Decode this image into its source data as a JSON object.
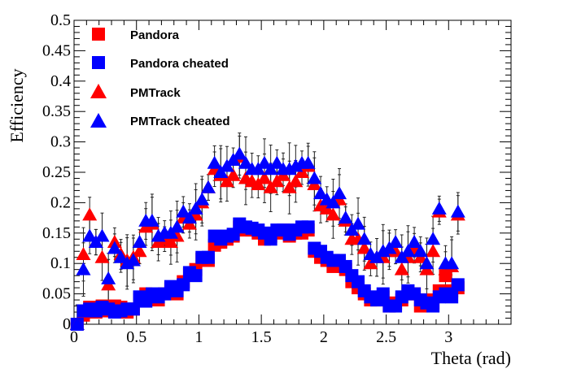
{
  "chart_data": {
    "type": "scatter",
    "xlabel": "Theta (rad)",
    "ylabel": "Efficiency",
    "xlim": [
      0,
      3.5
    ],
    "ylim": [
      0,
      0.5
    ],
    "xticks": [
      0,
      0.5,
      1,
      1.5,
      2,
      2.5,
      3
    ],
    "yticks": [
      0,
      0.05,
      0.1,
      0.15,
      0.2,
      0.25,
      0.3,
      0.35,
      0.4,
      0.45,
      0.5
    ],
    "legend_position": "top-left",
    "series": [
      {
        "name": "Pandora",
        "color": "#ff0000",
        "marker": "square",
        "x": [
          0.025,
          0.075,
          0.125,
          0.175,
          0.225,
          0.275,
          0.325,
          0.375,
          0.425,
          0.475,
          0.525,
          0.575,
          0.625,
          0.675,
          0.725,
          0.775,
          0.825,
          0.875,
          0.925,
          0.975,
          1.025,
          1.075,
          1.125,
          1.175,
          1.225,
          1.275,
          1.325,
          1.375,
          1.425,
          1.475,
          1.525,
          1.575,
          1.625,
          1.675,
          1.725,
          1.775,
          1.825,
          1.875,
          1.925,
          1.975,
          2.025,
          2.075,
          2.125,
          2.175,
          2.225,
          2.275,
          2.325,
          2.375,
          2.425,
          2.475,
          2.525,
          2.575,
          2.625,
          2.675,
          2.725,
          2.775,
          2.825,
          2.875,
          2.925,
          2.975,
          3.025,
          3.075
        ],
        "y": [
          0.0,
          0.015,
          0.028,
          0.02,
          0.03,
          0.022,
          0.03,
          0.028,
          0.02,
          0.025,
          0.04,
          0.05,
          0.045,
          0.04,
          0.05,
          0.058,
          0.05,
          0.07,
          0.082,
          0.09,
          0.107,
          0.105,
          0.13,
          0.135,
          0.14,
          0.145,
          0.16,
          0.155,
          0.155,
          0.15,
          0.14,
          0.145,
          0.15,
          0.155,
          0.145,
          0.15,
          0.15,
          0.155,
          0.12,
          0.11,
          0.105,
          0.095,
          0.1,
          0.09,
          0.07,
          0.06,
          0.05,
          0.04,
          0.04,
          0.045,
          0.03,
          0.035,
          0.04,
          0.05,
          0.05,
          0.03,
          0.04,
          0.035,
          0.055,
          0.08,
          0.055,
          0.06
        ]
      },
      {
        "name": "Pandora cheated",
        "color": "#0000ff",
        "marker": "square",
        "x": [
          0.025,
          0.075,
          0.125,
          0.175,
          0.225,
          0.275,
          0.325,
          0.375,
          0.425,
          0.475,
          0.525,
          0.575,
          0.625,
          0.675,
          0.725,
          0.775,
          0.825,
          0.875,
          0.925,
          0.975,
          1.025,
          1.075,
          1.125,
          1.175,
          1.225,
          1.275,
          1.325,
          1.375,
          1.425,
          1.475,
          1.525,
          1.575,
          1.625,
          1.675,
          1.725,
          1.775,
          1.825,
          1.875,
          1.925,
          1.975,
          2.025,
          2.075,
          2.125,
          2.175,
          2.225,
          2.275,
          2.325,
          2.375,
          2.425,
          2.475,
          2.525,
          2.575,
          2.625,
          2.675,
          2.725,
          2.775,
          2.825,
          2.875,
          2.925,
          2.975,
          3.025,
          3.075
        ],
        "y": [
          0.0,
          0.022,
          0.025,
          0.022,
          0.028,
          0.025,
          0.02,
          0.022,
          0.025,
          0.025,
          0.045,
          0.038,
          0.05,
          0.045,
          0.05,
          0.062,
          0.055,
          0.065,
          0.085,
          0.08,
          0.11,
          0.11,
          0.145,
          0.14,
          0.145,
          0.148,
          0.165,
          0.16,
          0.158,
          0.155,
          0.15,
          0.14,
          0.155,
          0.155,
          0.148,
          0.155,
          0.16,
          0.16,
          0.125,
          0.12,
          0.11,
          0.105,
          0.105,
          0.095,
          0.08,
          0.07,
          0.055,
          0.045,
          0.04,
          0.05,
          0.03,
          0.03,
          0.045,
          0.055,
          0.05,
          0.04,
          0.035,
          0.03,
          0.045,
          0.05,
          0.045,
          0.065
        ]
      },
      {
        "name": "PMTrack",
        "color": "#ff0000",
        "marker": "triangle",
        "x": [
          0.025,
          0.075,
          0.125,
          0.175,
          0.225,
          0.275,
          0.325,
          0.375,
          0.425,
          0.475,
          0.525,
          0.575,
          0.625,
          0.675,
          0.725,
          0.775,
          0.825,
          0.875,
          0.925,
          0.975,
          1.025,
          1.075,
          1.125,
          1.175,
          1.225,
          1.275,
          1.325,
          1.375,
          1.425,
          1.475,
          1.525,
          1.575,
          1.625,
          1.675,
          1.725,
          1.775,
          1.825,
          1.875,
          1.925,
          1.975,
          2.025,
          2.075,
          2.125,
          2.175,
          2.225,
          2.275,
          2.325,
          2.375,
          2.425,
          2.475,
          2.525,
          2.575,
          2.625,
          2.675,
          2.725,
          2.775,
          2.825,
          2.875,
          2.925,
          2.975,
          3.025,
          3.075
        ],
        "y": [
          0.0,
          0.115,
          0.18,
          0.135,
          0.11,
          0.065,
          0.135,
          0.115,
          0.105,
          0.11,
          0.12,
          0.16,
          0.165,
          0.135,
          0.14,
          0.135,
          0.145,
          0.175,
          0.165,
          0.18,
          0.2,
          0.225,
          0.255,
          0.245,
          0.235,
          0.245,
          0.275,
          0.24,
          0.235,
          0.23,
          0.24,
          0.225,
          0.235,
          0.245,
          0.225,
          0.235,
          0.25,
          0.26,
          0.23,
          0.195,
          0.19,
          0.18,
          0.205,
          0.17,
          0.14,
          0.14,
          0.125,
          0.1,
          0.11,
          0.11,
          0.12,
          0.12,
          0.09,
          0.11,
          0.125,
          0.11,
          0.09,
          0.12,
          0.185,
          0.09,
          0.095,
          0.18
        ]
      },
      {
        "name": "PMTrack cheated",
        "color": "#0000ff",
        "marker": "triangle",
        "x": [
          0.025,
          0.075,
          0.125,
          0.175,
          0.225,
          0.275,
          0.325,
          0.375,
          0.425,
          0.475,
          0.525,
          0.575,
          0.625,
          0.675,
          0.725,
          0.775,
          0.825,
          0.875,
          0.925,
          0.975,
          1.025,
          1.075,
          1.125,
          1.175,
          1.225,
          1.275,
          1.325,
          1.375,
          1.425,
          1.475,
          1.525,
          1.575,
          1.625,
          1.675,
          1.725,
          1.775,
          1.825,
          1.875,
          1.925,
          1.975,
          2.025,
          2.075,
          2.125,
          2.175,
          2.225,
          2.275,
          2.325,
          2.375,
          2.425,
          2.475,
          2.525,
          2.575,
          2.625,
          2.675,
          2.725,
          2.775,
          2.825,
          2.875,
          2.925,
          2.975,
          3.025,
          3.075
        ],
        "y": [
          0.0,
          0.09,
          0.145,
          0.135,
          0.145,
          0.075,
          0.125,
          0.11,
          0.1,
          0.105,
          0.135,
          0.17,
          0.17,
          0.145,
          0.15,
          0.15,
          0.16,
          0.185,
          0.175,
          0.19,
          0.205,
          0.225,
          0.265,
          0.25,
          0.26,
          0.27,
          0.28,
          0.265,
          0.255,
          0.255,
          0.265,
          0.255,
          0.265,
          0.255,
          0.255,
          0.26,
          0.265,
          0.265,
          0.24,
          0.215,
          0.205,
          0.2,
          0.215,
          0.175,
          0.155,
          0.165,
          0.14,
          0.115,
          0.11,
          0.12,
          0.125,
          0.135,
          0.11,
          0.12,
          0.135,
          0.12,
          0.1,
          0.14,
          0.19,
          0.1,
          0.1,
          0.185
        ]
      }
    ]
  }
}
